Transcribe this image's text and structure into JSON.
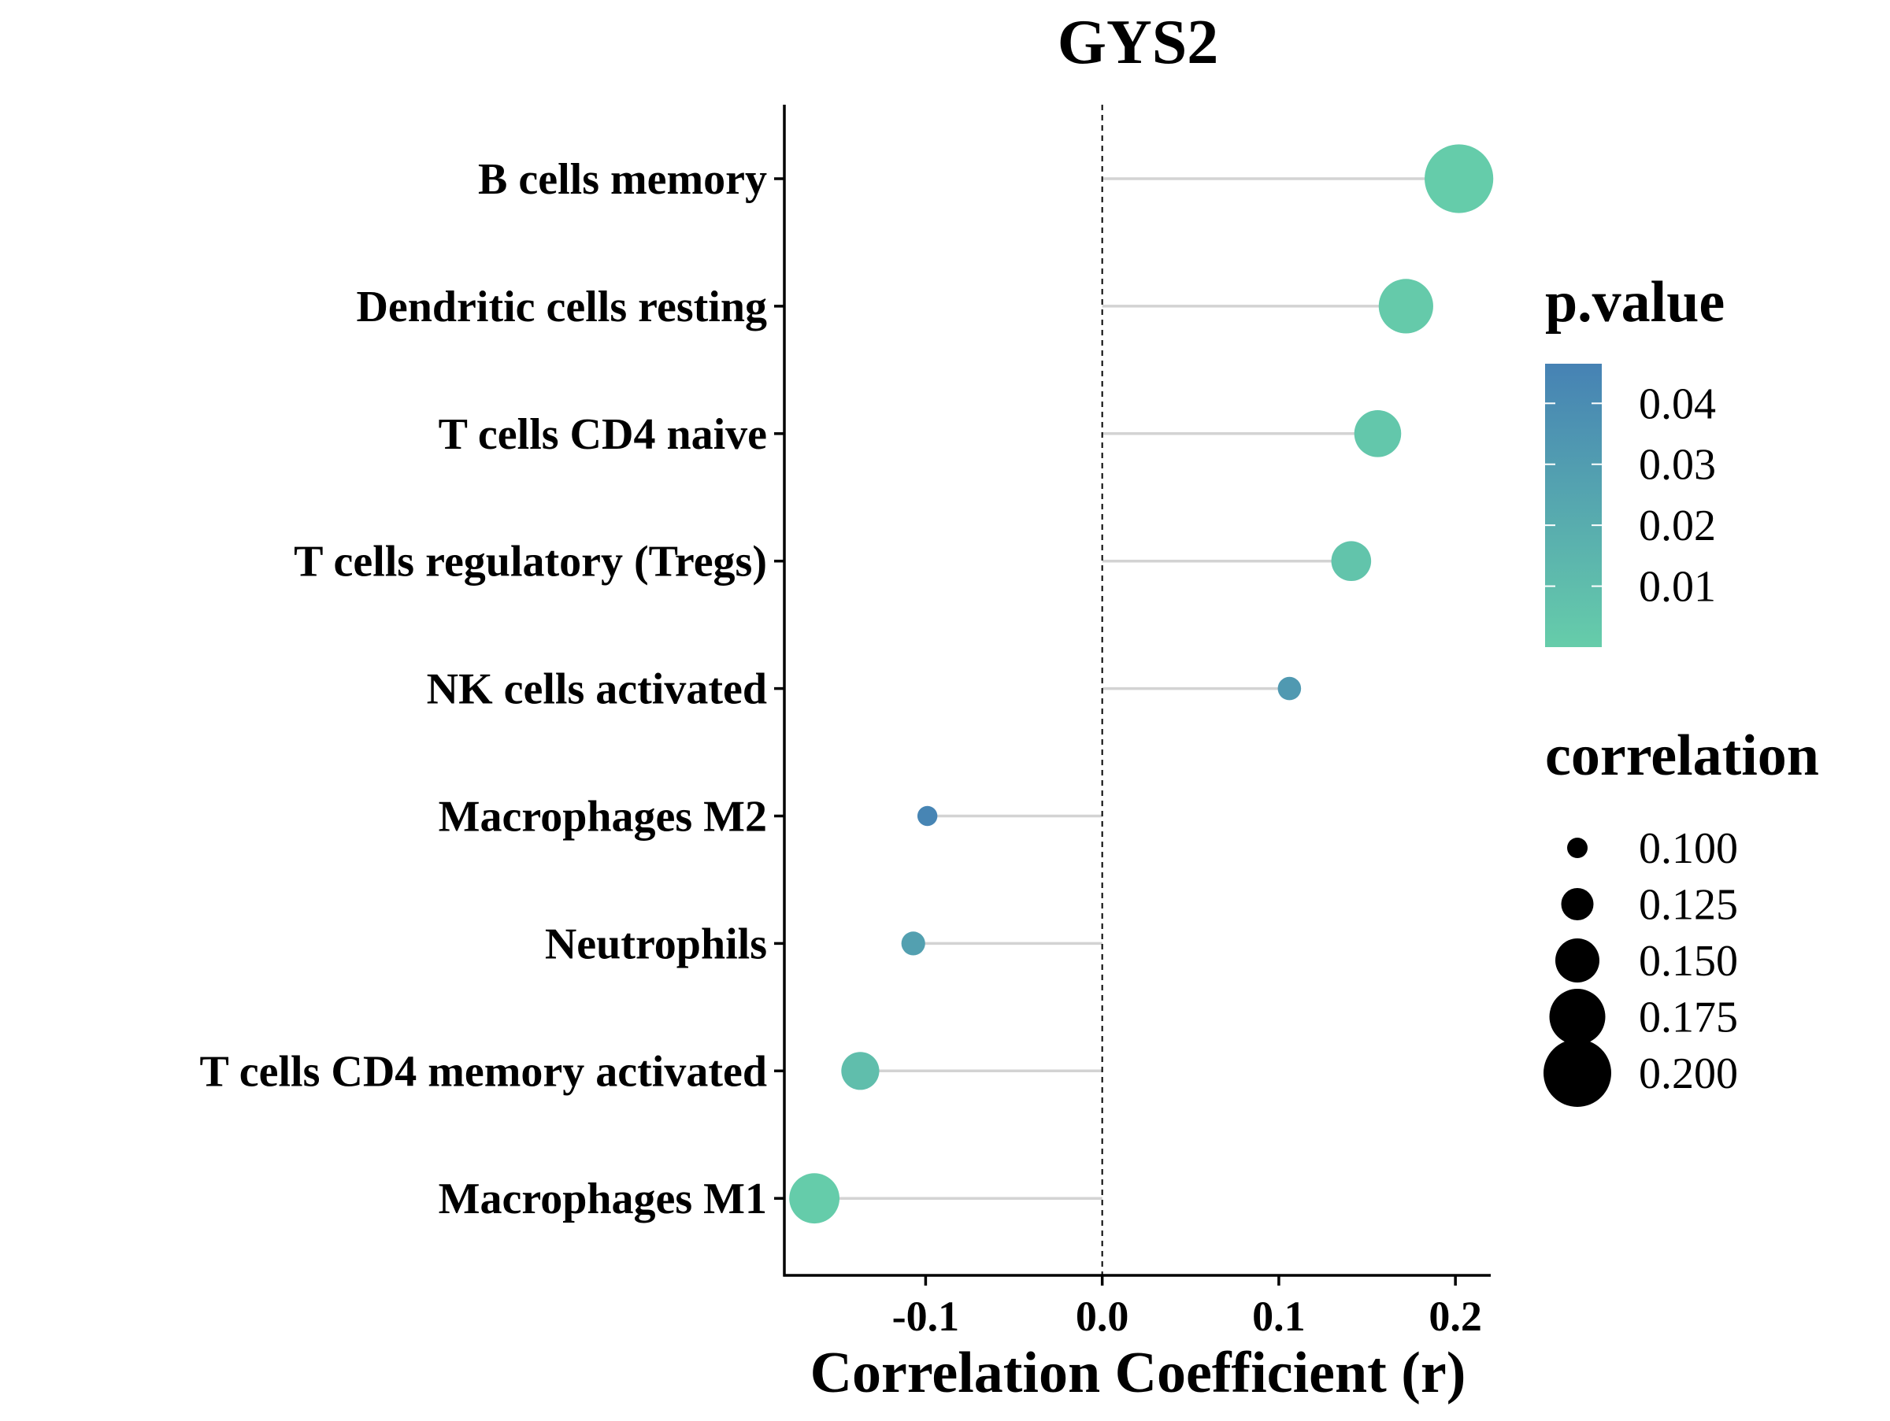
{
  "chart_data": {
    "type": "lollipop",
    "title": "GYS2",
    "xlabel": "Correlation Coefficient (r)",
    "ylabel": "",
    "xlim": [
      -0.18,
      0.22
    ],
    "x_ticks": [
      -0.1,
      0.0,
      0.1,
      0.2
    ],
    "x_tick_labels": [
      "-0.1",
      "0.0",
      "0.1",
      "0.2"
    ],
    "reference_line": 0.0,
    "grid": false,
    "stem_color": "#d3d3d3",
    "categories": [
      "B cells memory",
      "Dendritic cells resting",
      "T cells CD4 naive",
      "T cells regulatory (Tregs)",
      "NK cells activated",
      "Macrophages M2",
      "Neutrophils",
      "T cells CD4 memory activated",
      "Macrophages M1"
    ],
    "values": [
      0.202,
      0.172,
      0.156,
      0.141,
      0.106,
      -0.099,
      -0.107,
      -0.137,
      -0.163
    ],
    "p_values": [
      0.001,
      0.002,
      0.004,
      0.006,
      0.035,
      0.048,
      0.03,
      0.01,
      0.001
    ],
    "legend_color": {
      "title": "p.value",
      "low_color": "#66cdaa",
      "high_color": "#4682b4",
      "range": [
        0.0,
        0.05
      ],
      "ticks": [
        0.04,
        0.03,
        0.02,
        0.01
      ],
      "tick_labels": [
        "0.04",
        "0.03",
        "0.02",
        "0.01"
      ]
    },
    "legend_size": {
      "title": "correlation",
      "values": [
        0.1,
        0.125,
        0.15,
        0.175,
        0.2
      ],
      "labels": [
        "0.100",
        "0.125",
        "0.150",
        "0.175",
        "0.200"
      ]
    },
    "legend_position": "right"
  }
}
